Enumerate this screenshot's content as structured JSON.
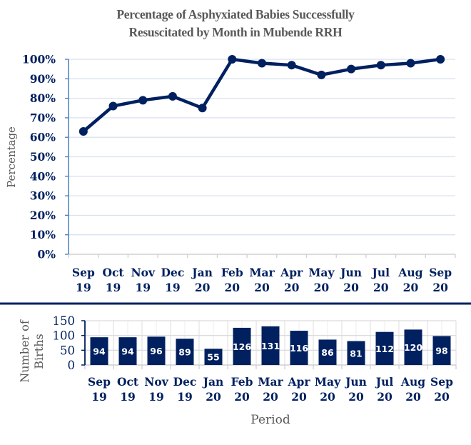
{
  "chart_data": [
    {
      "type": "line",
      "title": "Percentage of Asphyxiated Babies Successfully Resuscitated by Month in Mubende RRH",
      "title_lines": [
        "Percentage of Asphyxiated Babies Successfully",
        "Resuscitated by Month in Mubende RRH"
      ],
      "ylabel": "Percentage",
      "xlabel": "",
      "categories": [
        [
          "Sep",
          "19"
        ],
        [
          "Oct",
          "19"
        ],
        [
          "Nov",
          "19"
        ],
        [
          "Dec",
          "19"
        ],
        [
          "Jan",
          "20"
        ],
        [
          "Feb",
          "20"
        ],
        [
          "Mar",
          "20"
        ],
        [
          "Apr",
          "20"
        ],
        [
          "May",
          "20"
        ],
        [
          "Jun",
          "20"
        ],
        [
          "Jul",
          "20"
        ],
        [
          "Aug",
          "20"
        ],
        [
          "Sep",
          "20"
        ]
      ],
      "values": [
        63,
        76,
        79,
        81,
        75,
        100,
        98,
        97,
        92,
        95,
        97,
        98,
        100
      ],
      "ylim": [
        0,
        100
      ],
      "yticks": [
        "0%",
        "10%",
        "20%",
        "30%",
        "40%",
        "50%",
        "60%",
        "70%",
        "80%",
        "90%",
        "100%"
      ],
      "grid": true,
      "color": "#002060"
    },
    {
      "type": "bar",
      "title": "",
      "ylabel": "Number of Births",
      "ylabel_lines": [
        "Number of",
        "Births"
      ],
      "xlabel": "Period",
      "categories": [
        [
          "Sep",
          "19"
        ],
        [
          "Oct",
          "19"
        ],
        [
          "Nov",
          "19"
        ],
        [
          "Dec",
          "19"
        ],
        [
          "Jan",
          "20"
        ],
        [
          "Feb",
          "20"
        ],
        [
          "Mar",
          "20"
        ],
        [
          "Apr",
          "20"
        ],
        [
          "May",
          "20"
        ],
        [
          "Jun",
          "20"
        ],
        [
          "Jul",
          "20"
        ],
        [
          "Aug",
          "20"
        ],
        [
          "Sep",
          "20"
        ]
      ],
      "values": [
        94,
        94,
        96,
        89,
        55,
        126,
        131,
        116,
        86,
        81,
        112,
        120,
        98
      ],
      "ylim": [
        0,
        150
      ],
      "yticks": [
        "0",
        "50",
        "100",
        "150"
      ],
      "grid": true,
      "color": "#002060",
      "data_labels": true
    }
  ]
}
